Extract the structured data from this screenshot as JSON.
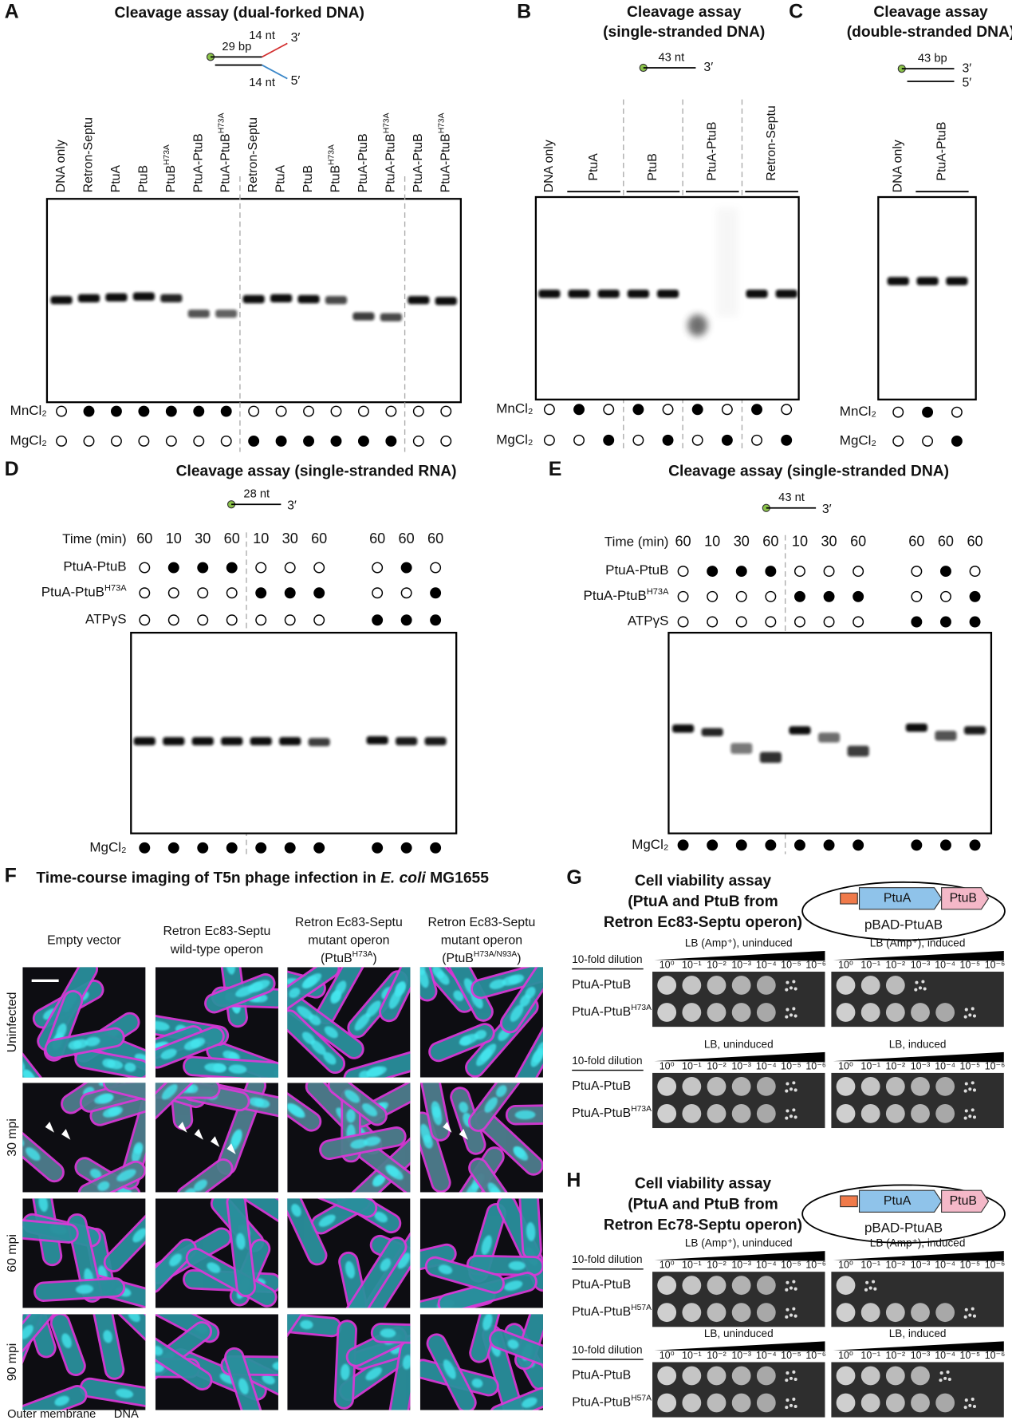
{
  "A": {
    "label": "A",
    "title": "Cleavage assay (dual-forked DNA)",
    "substrate": {
      "duplex": "29 bp",
      "top_arm": "14 nt",
      "top_end": "3′",
      "bottom_arm": "14 nt",
      "bottom_end": "5′"
    },
    "lanes": [
      {
        "text": "DNA only"
      },
      {
        "text": "Retron-Septu"
      },
      {
        "text": "PtuA"
      },
      {
        "text": "PtuB"
      },
      {
        "text": "PtuB",
        "sup": "H73A"
      },
      {
        "text": "PtuA-PtuB"
      },
      {
        "text": "PtuA-PtuB",
        "sup": "H73A"
      },
      {
        "text": "Retron-Septu"
      },
      {
        "text": "PtuA"
      },
      {
        "text": "PtuB"
      },
      {
        "text": "PtuB",
        "sup": "H73A"
      },
      {
        "text": "PtuA-PtuB"
      },
      {
        "text": "PtuA-PtuB",
        "sup": "H73A"
      },
      {
        "text": "PtuA-PtuB"
      },
      {
        "text": "PtuA-PtuB",
        "sup": "H73A"
      }
    ],
    "conditions": [
      {
        "name": "MnCl₂",
        "values": [
          0,
          1,
          1,
          1,
          1,
          1,
          1,
          0,
          0,
          0,
          0,
          0,
          0,
          0,
          0
        ]
      },
      {
        "name": "MgCl₂",
        "values": [
          0,
          0,
          0,
          0,
          0,
          0,
          0,
          1,
          1,
          1,
          1,
          1,
          1,
          0,
          0
        ]
      }
    ]
  },
  "B": {
    "label": "B",
    "title": [
      "Cleavage assay",
      "(single-stranded DNA)"
    ],
    "substrate": {
      "length": "43 nt",
      "end": "3′"
    },
    "lanes": [
      "DNA only"
    ],
    "groups": [
      "PtuA",
      "PtuB",
      "PtuA-PtuB",
      "Retron-Septu"
    ],
    "conditions": [
      {
        "name": "MnCl₂",
        "values": [
          0,
          1,
          0,
          1,
          0,
          1,
          0,
          1,
          0
        ]
      },
      {
        "name": "MgCl₂",
        "values": [
          0,
          0,
          1,
          0,
          1,
          0,
          1,
          0,
          1
        ]
      }
    ]
  },
  "C": {
    "label": "C",
    "title": [
      "Cleavage assay",
      "(double-stranded DNA)"
    ],
    "substrate": {
      "length": "43 bp",
      "top_end": "3′",
      "bottom_end": "5′"
    },
    "lanes": [
      "DNA only"
    ],
    "groups": [
      "PtuA-PtuB"
    ],
    "conditions": [
      {
        "name": "MnCl₂",
        "values": [
          0,
          1,
          0
        ]
      },
      {
        "name": "MgCl₂",
        "values": [
          0,
          0,
          1
        ]
      }
    ]
  },
  "D": {
    "label": "D",
    "title": "Cleavage assay (single-stranded RNA)",
    "substrate": {
      "length": "28 nt",
      "end": "3′"
    },
    "time": {
      "name": "Time (min)",
      "values": [
        60,
        10,
        30,
        60,
        10,
        30,
        60,
        null,
        60,
        60,
        60
      ]
    },
    "conditions": [
      {
        "name": {
          "text": "PtuA-PtuB"
        },
        "values": [
          0,
          1,
          1,
          1,
          0,
          0,
          0,
          null,
          0,
          1,
          0
        ]
      },
      {
        "name": {
          "text": "PtuA-PtuB",
          "sup": "H73A"
        },
        "values": [
          0,
          0,
          0,
          0,
          1,
          1,
          1,
          null,
          0,
          0,
          1
        ]
      },
      {
        "name": {
          "text": "ATPγS"
        },
        "values": [
          0,
          0,
          0,
          0,
          0,
          0,
          0,
          null,
          1,
          1,
          1
        ]
      }
    ],
    "gel_condition": {
      "name": "MgCl₂",
      "values": [
        1,
        1,
        1,
        1,
        1,
        1,
        1,
        null,
        1,
        1,
        1
      ]
    }
  },
  "E": {
    "label": "E",
    "title": "Cleavage assay (single-stranded DNA)",
    "substrate": {
      "length": "43 nt",
      "end": "3′"
    },
    "time": {
      "name": "Time (min)",
      "values": [
        60,
        10,
        30,
        60,
        10,
        30,
        60,
        null,
        60,
        60,
        60
      ]
    },
    "conditions": [
      {
        "name": {
          "text": "PtuA-PtuB"
        },
        "values": [
          0,
          1,
          1,
          1,
          0,
          0,
          0,
          null,
          0,
          1,
          0
        ]
      },
      {
        "name": {
          "text": "PtuA-PtuB",
          "sup": "H73A"
        },
        "values": [
          0,
          0,
          0,
          0,
          1,
          1,
          1,
          null,
          0,
          0,
          1
        ]
      },
      {
        "name": {
          "text": "ATPγS"
        },
        "values": [
          0,
          0,
          0,
          0,
          0,
          0,
          0,
          null,
          1,
          1,
          1
        ]
      }
    ],
    "gel_condition": {
      "name": "MgCl₂",
      "values": [
        1,
        1,
        1,
        1,
        1,
        1,
        1,
        null,
        1,
        1,
        1
      ]
    }
  },
  "F": {
    "label": "F",
    "title": {
      "text": "Time-course imaging of T5n phage infection in ",
      "italic": "E. coli",
      "after": " MG1655"
    },
    "columns": [
      [
        {
          "text": "Empty vector"
        }
      ],
      [
        {
          "text": "Retron Ec83-Septu"
        },
        {
          "text": "wild-type operon"
        }
      ],
      [
        {
          "text": "Retron Ec83-Septu"
        },
        {
          "text": "mutant operon"
        },
        {
          "text": "(PtuB",
          "sup": "H73A",
          "after": ")"
        }
      ],
      [
        {
          "text": "Retron Ec83-Septu"
        },
        {
          "text": "mutant operon"
        },
        {
          "text": "(PtuB",
          "sup": "H73A/N93A",
          "after": ")"
        }
      ]
    ],
    "rows": [
      "Uninfected",
      "30 mpi",
      "60 mpi",
      "90 mpi"
    ],
    "legend": [
      "Outer membrane",
      "DNA"
    ]
  },
  "G": {
    "label": "G",
    "title": [
      "Cell viability assay",
      "(PtuA and PtuB from",
      "Retron Ec83-Septu operon)"
    ],
    "plasmid": {
      "genes": [
        "PtuA",
        "PtuB"
      ],
      "name": "pBAD-PtuAB"
    },
    "plates": [
      "LB (Amp⁺), uninduced",
      "LB (Amp⁺), induced",
      "LB, uninduced",
      "LB, induced"
    ],
    "dilution_label": "10-fold dilution",
    "dilutions": [
      "10⁰",
      "10⁻¹",
      "10⁻²",
      "10⁻³",
      "10⁻⁴",
      "10⁻⁵",
      "10⁻⁶"
    ],
    "strains": [
      {
        "text": "PtuA-PtuB"
      },
      {
        "text": "PtuA-PtuB",
        "sup": "H73A"
      }
    ]
  },
  "H": {
    "label": "H",
    "title": [
      "Cell viability assay",
      "(PtuA and PtuB from",
      "Retron Ec78-Septu operon)"
    ],
    "plasmid": {
      "genes": [
        "PtuA",
        "PtuB"
      ],
      "name": "pBAD-PtuAB"
    },
    "plates": [
      "LB (Amp⁺), uninduced",
      "LB (Amp⁺), induced",
      "LB, uninduced",
      "LB, induced"
    ],
    "dilution_label": "10-fold dilution",
    "dilutions": [
      "10⁰",
      "10⁻¹",
      "10⁻²",
      "10⁻³",
      "10⁻⁴",
      "10⁻⁵",
      "10⁻⁶"
    ],
    "strains": [
      {
        "text": "PtuA-PtuB"
      },
      {
        "text": "PtuA-PtuB",
        "sup": "H57A"
      }
    ]
  }
}
